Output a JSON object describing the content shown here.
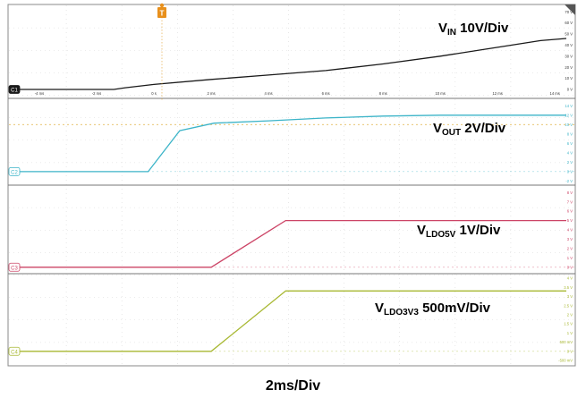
{
  "timebase_label": "2ms/Div",
  "trigger_marker": "T",
  "chart_data": [
    {
      "type": "line",
      "channel_tag": "C1",
      "label_main": "V",
      "label_sub": "IN",
      "label_rest": " 10V/Div",
      "color": "#1a1a1a",
      "xlim": [
        -5,
        14.4
      ],
      "ylim": [
        0,
        75
      ],
      "x_ticks": [
        {
          "v": -4,
          "t": "-4 ms"
        },
        {
          "v": -2,
          "t": "-2 ms"
        },
        {
          "v": 0,
          "t": "0 s"
        },
        {
          "v": 2,
          "t": "2 ms"
        },
        {
          "v": 4,
          "t": "4 ms"
        },
        {
          "v": 6,
          "t": "6 ms"
        },
        {
          "v": 8,
          "t": "8 ms"
        },
        {
          "v": 10,
          "t": "10 ms"
        },
        {
          "v": 12,
          "t": "12 ms"
        },
        {
          "v": 14,
          "t": "14 ms"
        }
      ],
      "y_ticks": [
        {
          "v": 70,
          "t": "70 V"
        },
        {
          "v": 60,
          "t": "60 V"
        },
        {
          "v": 50,
          "t": "50 V"
        },
        {
          "v": 40,
          "t": "40 V"
        },
        {
          "v": 30,
          "t": "30 V"
        },
        {
          "v": 20,
          "t": "20 V"
        },
        {
          "v": 10,
          "t": "10 V"
        },
        {
          "v": 0,
          "t": "0 V"
        }
      ],
      "x": [
        -5,
        -1.4,
        -1.0,
        0,
        2,
        4,
        6,
        8,
        10,
        12,
        13.5,
        14.4
      ],
      "y": [
        0,
        0,
        1.5,
        4.5,
        9,
        13,
        17,
        23,
        30,
        38,
        44,
        46
      ]
    },
    {
      "type": "line",
      "channel_tag": "C2",
      "label_main": "V",
      "label_sub": "OUT",
      "label_rest": " 2V/Div",
      "color": "#3cb4c8",
      "xlim": [
        -5,
        14.4
      ],
      "ylim": [
        -2.5,
        15
      ],
      "y_ticks": [
        {
          "v": 14,
          "t": "14 V"
        },
        {
          "v": 12,
          "t": "12 V"
        },
        {
          "v": 10,
          "t": "10 V"
        },
        {
          "v": 8,
          "t": "8 V"
        },
        {
          "v": 6,
          "t": "6 V"
        },
        {
          "v": 4,
          "t": "4 V"
        },
        {
          "v": 2,
          "t": "2 V"
        },
        {
          "v": 0,
          "t": "0 V"
        },
        {
          "v": -2,
          "t": "-2 V"
        }
      ],
      "x": [
        -5,
        -0.2,
        0.9,
        2.1,
        4,
        6,
        8,
        10,
        12,
        14.4
      ],
      "y": [
        0,
        0,
        8.7,
        10.3,
        10.8,
        11.4,
        11.8,
        12.0,
        12.0,
        12.0
      ]
    },
    {
      "type": "line",
      "channel_tag": "C3",
      "label_main": "V",
      "label_sub": "LDO5V",
      "label_rest": " 1V/Div",
      "color": "#cc4466",
      "xlim": [
        -5,
        14.4
      ],
      "ylim": [
        -0.5,
        8.5
      ],
      "y_ticks": [
        {
          "v": 8,
          "t": "8 V"
        },
        {
          "v": 7,
          "t": "7 V"
        },
        {
          "v": 6,
          "t": "6 V"
        },
        {
          "v": 5,
          "t": "5 V"
        },
        {
          "v": 4,
          "t": "4 V"
        },
        {
          "v": 3,
          "t": "3 V"
        },
        {
          "v": 2,
          "t": "2 V"
        },
        {
          "v": 1,
          "t": "1 V"
        },
        {
          "v": 0,
          "t": "0 V"
        }
      ],
      "x": [
        -5,
        2.0,
        4.6,
        14.4
      ],
      "y": [
        0,
        0,
        5,
        5
      ]
    },
    {
      "type": "line",
      "channel_tag": "C4",
      "label_main": "V",
      "label_sub": "LDO3V3",
      "label_rest": " 500mV/Div",
      "color": "#a8b832",
      "xlim": [
        -5,
        14.4
      ],
      "ylim": [
        -0.5,
        4.1
      ],
      "y_ticks": [
        {
          "v": 4,
          "t": "4 V"
        },
        {
          "v": 3.5,
          "t": "3.5 V"
        },
        {
          "v": 3,
          "t": "3 V"
        },
        {
          "v": 2.5,
          "t": "2.5 V"
        },
        {
          "v": 2,
          "t": "2 V"
        },
        {
          "v": 1.5,
          "t": "1.5 V"
        },
        {
          "v": 1,
          "t": "1 V"
        },
        {
          "v": 0.5,
          "t": "500 mV"
        },
        {
          "v": 0,
          "t": "0 V"
        },
        {
          "v": -0.5,
          "t": "-500 mV"
        }
      ],
      "x": [
        -5,
        2.0,
        4.6,
        14.4
      ],
      "y": [
        0,
        0,
        3.3,
        3.3
      ]
    }
  ]
}
